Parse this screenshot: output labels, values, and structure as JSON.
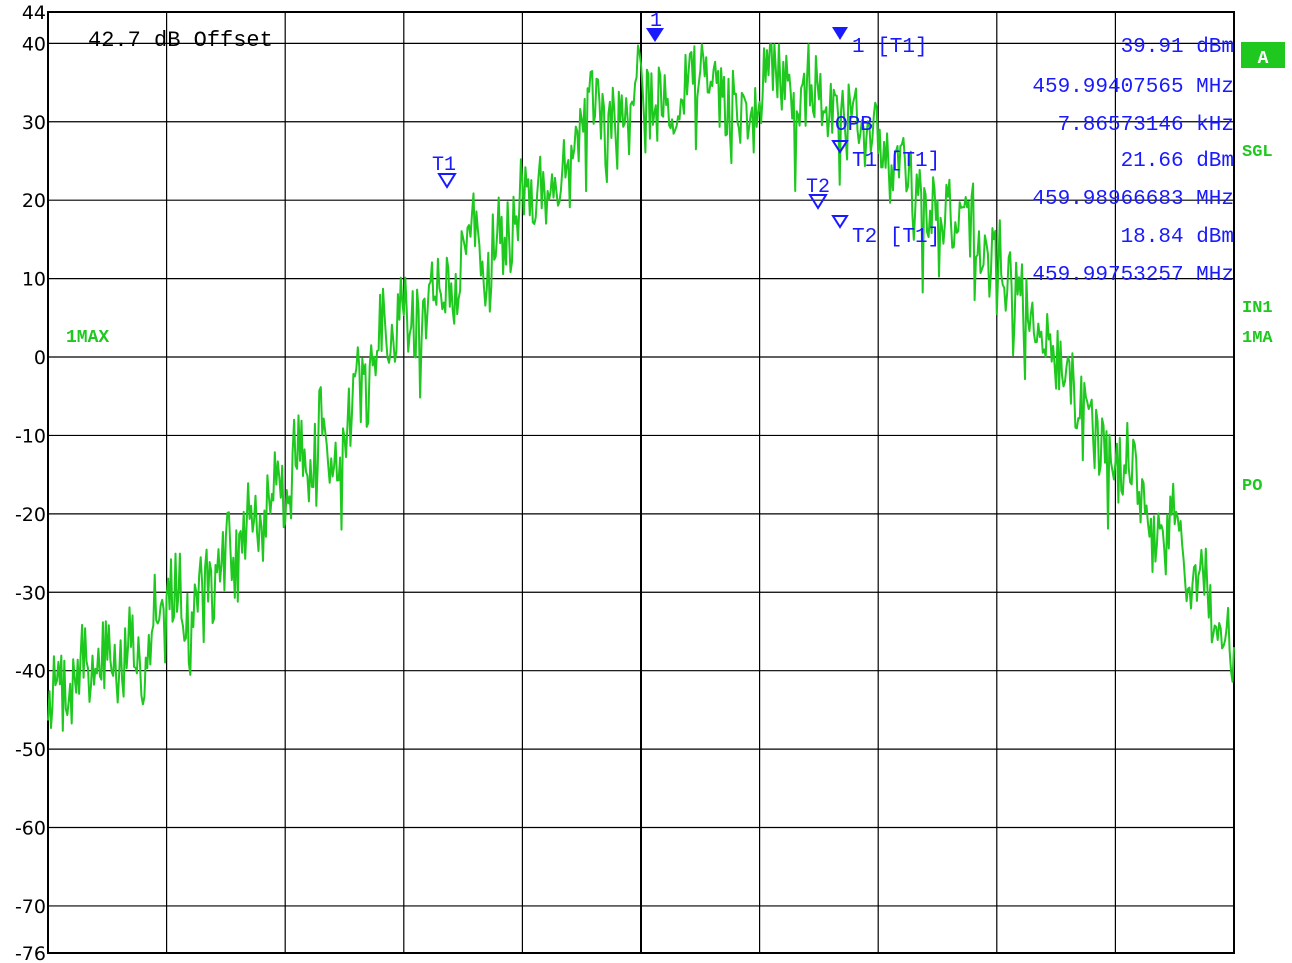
{
  "colors": {
    "trace": "#1ec81e",
    "marker": "#1a1aff",
    "status": "#1ec81e",
    "grid": "#000000",
    "background": "#ffffff"
  },
  "offset_label": "42.7 dB Offset",
  "status_labels": {
    "trace_mode": "1MAX",
    "side_a": "A",
    "side_sgl": "SGL",
    "side_in1": "IN1",
    "side_1ma": "1MA",
    "side_po": "PO"
  },
  "marker_table": [
    {
      "label": "1 [T1]",
      "value": "39.91 dBm",
      "sub": "459.99407565 MHz"
    },
    {
      "label": "OPB",
      "value": "7.86573146 kHz"
    },
    {
      "label": "T1 [T1]",
      "value": "21.66 dBm",
      "sub": "459.98966683 MHz"
    },
    {
      "label": "T2 [T1]",
      "value": "18.84 dBm",
      "sub": "459.99753257 MHz"
    }
  ],
  "marker_flags": {
    "m1": "1",
    "t1": "T1",
    "t2": "T2"
  },
  "chart_data": {
    "type": "line",
    "ylim": [
      -76,
      44
    ],
    "xlim": [
      0,
      100
    ],
    "grid": true,
    "ytick_labels": [
      "44",
      "40",
      "30",
      "20",
      "10",
      "0",
      "-10",
      "-20",
      "-30",
      "-40",
      "-50",
      "-60",
      "-70",
      "-76"
    ],
    "ytick_values": [
      44,
      40,
      30,
      20,
      10,
      0,
      -10,
      -20,
      -30,
      -40,
      -50,
      -60,
      -70,
      -76
    ],
    "series": [
      {
        "x": [
          0,
          1,
          2,
          3,
          4,
          5,
          6,
          7,
          8,
          9,
          10,
          11,
          12,
          13,
          14,
          15,
          16,
          17,
          18,
          19,
          20,
          21,
          22,
          23,
          24,
          25,
          26,
          27,
          28,
          29,
          30,
          31,
          32,
          33,
          34,
          35,
          36,
          37,
          38,
          39,
          40,
          41,
          42,
          43,
          44,
          45,
          46,
          47,
          48,
          49,
          50,
          51,
          52,
          53,
          54,
          55,
          56,
          57,
          58,
          59,
          60,
          61,
          62,
          63,
          64,
          65,
          66,
          67,
          68,
          69,
          70,
          71,
          72,
          73,
          74,
          75,
          76,
          77,
          78,
          79,
          80,
          81,
          82,
          83,
          84,
          85,
          86,
          87,
          88,
          89,
          90,
          91,
          92,
          93,
          94,
          95,
          96,
          97,
          98,
          99,
          100
        ],
        "y": [
          -44,
          -41,
          -43,
          -38,
          -41,
          -36,
          -40,
          -35,
          -41,
          -30,
          -31,
          -28,
          -36,
          -26,
          -31,
          -22,
          -27,
          -18,
          -24,
          -14,
          -19,
          -10,
          -16,
          -7,
          -13,
          -11,
          -3,
          -5,
          5,
          2,
          9,
          4,
          7,
          12,
          6,
          14,
          17,
          11,
          19,
          14,
          22,
          20,
          25,
          21,
          27,
          30,
          33,
          29,
          31,
          35,
          37,
          33,
          34,
          30,
          36,
          38,
          35,
          32,
          33,
          29,
          32,
          39.9,
          35,
          32,
          37,
          33,
          35,
          30,
          31,
          27,
          29,
          24,
          28,
          21,
          20,
          18,
          19,
          15,
          18,
          12,
          14,
          11,
          9,
          5,
          3,
          0,
          -2,
          -6,
          -8,
          -11,
          -15,
          -12,
          -17,
          -22,
          -25,
          -20,
          -29,
          -27,
          -30,
          -33,
          -37
        ]
      }
    ]
  }
}
